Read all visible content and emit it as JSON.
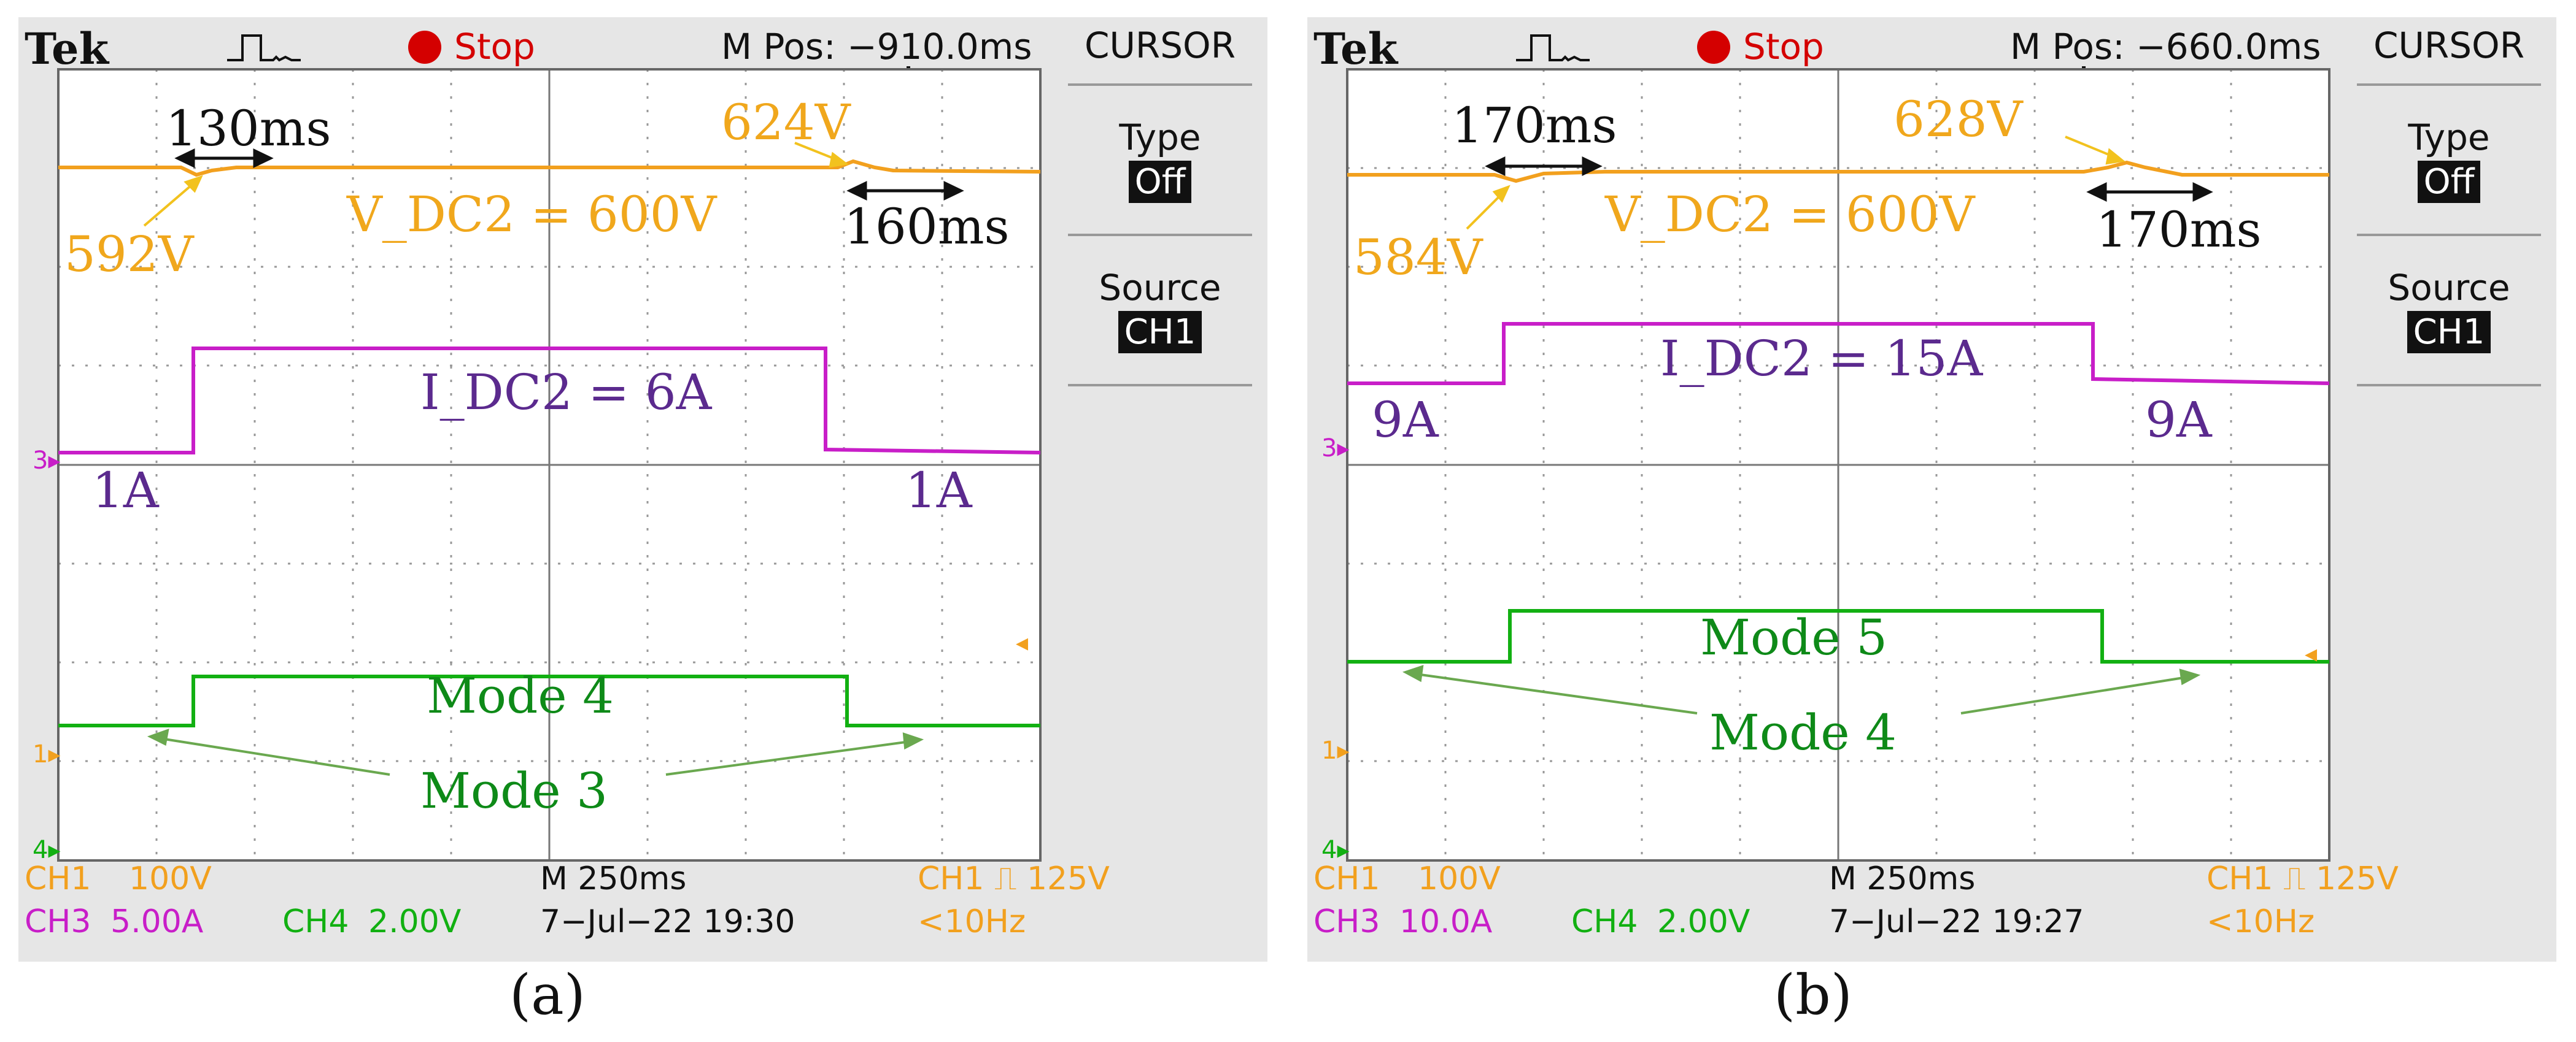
{
  "panel_a": {
    "brand": "Tek",
    "trigger_status": "Stop",
    "mpos": "M Pos: −910.0ms",
    "menu_title": "CURSOR",
    "type_label": "Type",
    "type_value": "Off",
    "source_label": "Source",
    "source_value": "CH1",
    "ch1_scale_label": "CH1",
    "ch1_scale": "100V",
    "ch3_scale_label": "CH3",
    "ch3_scale": "5.00A",
    "ch4_scale_label": "CH4",
    "ch4_scale": "2.00V",
    "timebase": "M 250ms",
    "datetime": "7−Jul−22 19:30",
    "trigger_label": "CH1 ⎍ 125V",
    "freq": "<10Hz",
    "ann": {
      "t1": "130ms",
      "v_peak": "624V",
      "v_dip": "592V",
      "vdc": "V_DC2 = 600V",
      "t2": "160ms",
      "idc": "I_DC2 = 6A",
      "i_low_left": "1A",
      "i_low_right": "1A",
      "mode_high": "Mode 4",
      "mode_low": "Mode 3"
    },
    "caption": "(a)",
    "colors": {
      "ch1": "#f2a01e",
      "ch3": "#c81ec8",
      "ch4": "#12b012"
    }
  },
  "panel_b": {
    "brand": "Tek",
    "trigger_status": "Stop",
    "mpos": "M Pos: −660.0ms",
    "menu_title": "CURSOR",
    "type_label": "Type",
    "type_value": "Off",
    "source_label": "Source",
    "source_value": "CH1",
    "ch1_scale_label": "CH1",
    "ch1_scale": "100V",
    "ch3_scale_label": "CH3",
    "ch3_scale": "10.0A",
    "ch4_scale_label": "CH4",
    "ch4_scale": "2.00V",
    "timebase": "M 250ms",
    "datetime": "7−Jul−22 19:27",
    "trigger_label": "CH1 ⎍ 125V",
    "freq": "<10Hz",
    "ann": {
      "t1": "170ms",
      "v_peak": "628V",
      "v_dip": "584V",
      "vdc": "V_DC2 = 600V",
      "t2": "170ms",
      "idc": "I_DC2 = 15A",
      "i_low_left": "9A",
      "i_low_right": "9A",
      "mode_high": "Mode 5",
      "mode_low": "Mode 4"
    },
    "caption": "(b)",
    "colors": {
      "ch1": "#f2a01e",
      "ch3": "#c81ec8",
      "ch4": "#12b012"
    }
  }
}
